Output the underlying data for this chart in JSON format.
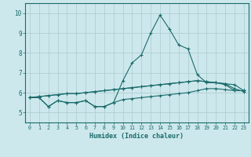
{
  "title": "",
  "xlabel": "Humidex (Indice chaleur)",
  "ylabel": "",
  "bg_color": "#cde8ec",
  "grid_color": "#b0ced2",
  "line_color": "#1a6b6b",
  "xlim": [
    -0.5,
    23.5
  ],
  "ylim": [
    4.5,
    10.5
  ],
  "xticks": [
    0,
    1,
    2,
    3,
    4,
    5,
    6,
    7,
    8,
    9,
    10,
    11,
    12,
    13,
    14,
    15,
    16,
    17,
    18,
    19,
    20,
    21,
    22,
    23
  ],
  "yticks": [
    5,
    6,
    7,
    8,
    9,
    10
  ],
  "series": [
    [
      5.75,
      5.75,
      5.3,
      5.6,
      5.5,
      5.5,
      5.6,
      5.3,
      5.3,
      5.5,
      6.6,
      7.5,
      7.9,
      9.0,
      9.9,
      9.2,
      8.4,
      8.2,
      6.9,
      6.5,
      6.5,
      6.4,
      6.1,
      6.1
    ],
    [
      5.75,
      5.75,
      5.3,
      5.6,
      5.5,
      5.5,
      5.6,
      5.3,
      5.3,
      5.5,
      5.65,
      5.7,
      5.75,
      5.8,
      5.85,
      5.9,
      5.95,
      6.0,
      6.1,
      6.2,
      6.2,
      6.15,
      6.1,
      6.1
    ],
    [
      5.75,
      5.8,
      5.85,
      5.9,
      5.95,
      5.95,
      6.0,
      6.05,
      6.1,
      6.15,
      6.2,
      6.25,
      6.3,
      6.35,
      6.4,
      6.45,
      6.5,
      6.55,
      6.6,
      6.55,
      6.5,
      6.45,
      6.4,
      6.1
    ],
    [
      5.75,
      5.8,
      5.85,
      5.9,
      5.95,
      5.95,
      6.0,
      6.05,
      6.1,
      6.15,
      6.2,
      6.25,
      6.3,
      6.35,
      6.4,
      6.45,
      6.5,
      6.55,
      6.6,
      6.55,
      6.5,
      6.45,
      6.2,
      6.05
    ]
  ]
}
